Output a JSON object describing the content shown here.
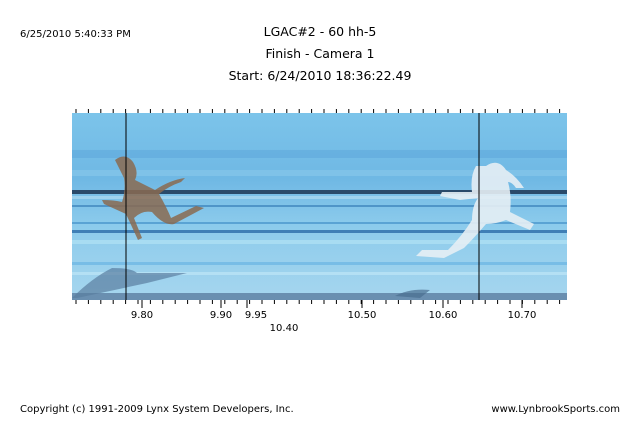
{
  "header": {
    "timestamp": "6/25/2010 5:40:33 PM",
    "title": "LGAC#2 - 60 hh-5",
    "subtitle": "Finish - Camera 1",
    "start": "Start: 6/24/2010 18:36:22.49"
  },
  "time_labels": [
    "9.80",
    "9.90",
    "9.95",
    "10.40",
    "10.50",
    "10.60",
    "10.70"
  ],
  "footer": {
    "copyright": "Copyright (c) 1991-2009 Lynx System Developers, Inc.",
    "website": "www.LynbrookSports.com"
  }
}
